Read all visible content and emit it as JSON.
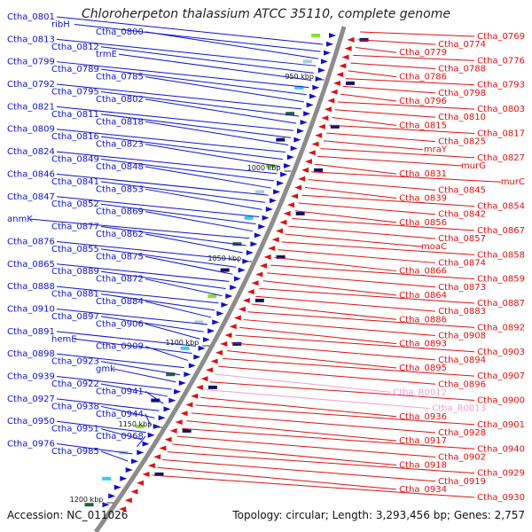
{
  "title": "Chloroherpeton thalassium ATCC 35110, complete genome",
  "footer": {
    "accession": "Accession: NC_011026",
    "summary": "Topology: circular; Length: 3,293,456 bp; Genes: 2,757"
  },
  "colors": {
    "forward": "#1111cc",
    "reverse": "#dd1111",
    "pseudo": "#f0a0d0",
    "backbone": "#888888"
  },
  "kbp_marks": [
    "950 kbp",
    "1000 kbp",
    "1050 kbp",
    "1100 kbp",
    "1150 kbp",
    "1200 kbp"
  ],
  "left_labels": [
    "Ctha_0801",
    "ribH",
    "Ctha_0800",
    "Ctha_0813",
    "Ctha_0812",
    "trmE",
    "Ctha_0799",
    "Ctha_0789",
    "Ctha_0785",
    "Ctha_0792",
    "Ctha_0795",
    "Ctha_0802",
    "Ctha_0821",
    "Ctha_0811",
    "Ctha_0818",
    "Ctha_0809",
    "Ctha_0816",
    "Ctha_0823",
    "Ctha_0824",
    "Ctha_0849",
    "Ctha_0848",
    "Ctha_0846",
    "Ctha_0841",
    "Ctha_0853",
    "Ctha_0847",
    "Ctha_0852",
    "Ctha_0869",
    "anmK",
    "Ctha_0877",
    "Ctha_0862",
    "Ctha_0876",
    "Ctha_0855",
    "Ctha_0875",
    "Ctha_0865",
    "Ctha_0889",
    "Ctha_0872",
    "Ctha_0888",
    "Ctha_0881",
    "Ctha_0884",
    "Ctha_0910",
    "Ctha_0897",
    "Ctha_0906",
    "Ctha_0891",
    "hemE",
    "Ctha_0909",
    "Ctha_0898",
    "Ctha_0923",
    "gmk",
    "Ctha_0939",
    "Ctha_0922",
    "Ctha_0941",
    "Ctha_0927",
    "Ctha_0938",
    "Ctha_0944",
    "Ctha_0950",
    "Ctha_0951",
    "Ctha_0968",
    "Ctha_0976",
    "Ctha_0985"
  ],
  "right_labels": [
    "Ctha_0769",
    "Ctha_0774",
    "Ctha_0779",
    "Ctha_0776",
    "Ctha_0788",
    "Ctha_0786",
    "Ctha_0793",
    "Ctha_0798",
    "Ctha_0796",
    "Ctha_0803",
    "Ctha_0810",
    "Ctha_0815",
    "Ctha_0817",
    "Ctha_0825",
    "mraY",
    "Ctha_0827",
    "murG",
    "Ctha_0831",
    "murC",
    "Ctha_0845",
    "Ctha_0839",
    "Ctha_0854",
    "Ctha_0842",
    "Ctha_0856",
    "Ctha_0867",
    "Ctha_0857",
    "moaC",
    "Ctha_0858",
    "Ctha_0874",
    "Ctha_0866",
    "Ctha_0859",
    "Ctha_0873",
    "Ctha_0864",
    "Ctha_0887",
    "Ctha_0883",
    "Ctha_0886",
    "Ctha_0892",
    "Ctha_0908",
    "Ctha_0893",
    "Ctha_0903",
    "Ctha_0894",
    "Ctha_0895",
    "Ctha_0907",
    "Ctha_0896",
    "Ctha_R0012",
    "Ctha_0900",
    "Ctha_R0013",
    "Ctha_0936",
    "Ctha_0901",
    "Ctha_0928",
    "Ctha_0917",
    "Ctha_0940",
    "Ctha_0902",
    "Ctha_0918",
    "Ctha_0929",
    "Ctha_0919",
    "Ctha_0934",
    "Ctha_0930"
  ]
}
